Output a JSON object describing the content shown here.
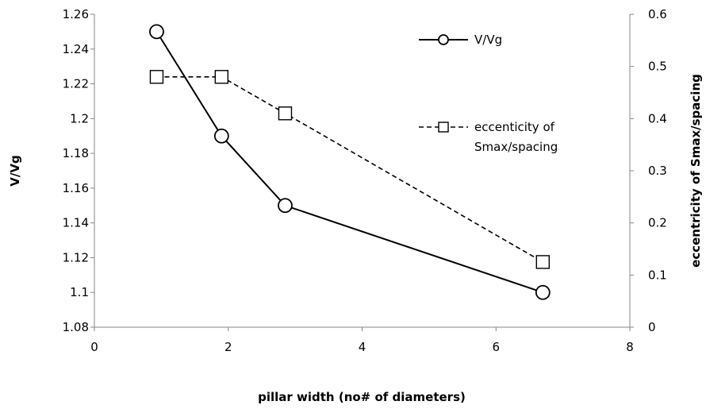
{
  "chart_data": {
    "type": "line",
    "title": "",
    "xlabel": "pillar width (no# of diameters)",
    "ylabel": "V/Vg",
    "y2label": "eccentricity of Smax/spacing",
    "xlim": [
      0,
      8
    ],
    "ylim": [
      1.08,
      1.26
    ],
    "y2lim": [
      0,
      0.6
    ],
    "x_ticks": [
      "0",
      "2",
      "4",
      "6",
      "8"
    ],
    "y_ticks": [
      "1.08",
      "1.1",
      "1.12",
      "1.14",
      "1.16",
      "1.18",
      "1.2",
      "1.22",
      "1.24",
      "1.26"
    ],
    "y2_ticks": [
      "0",
      "0.1",
      "0.2",
      "0.3",
      "0.4",
      "0.5",
      "0.6"
    ],
    "grid": false,
    "legend_position": "top-right",
    "series": [
      {
        "name": "V/Vg",
        "axis": "left",
        "style": "solid",
        "marker": "circle",
        "x": [
          0.93,
          1.9,
          2.85,
          6.7
        ],
        "y": [
          1.25,
          1.19,
          1.15,
          1.1
        ]
      },
      {
        "name": "eccenticity of Smax/spacing",
        "legend_lines": [
          "eccenticity of",
          "Smax/spacing"
        ],
        "axis": "right",
        "style": "dashed",
        "marker": "square",
        "x": [
          0.93,
          1.9,
          2.85,
          6.7
        ],
        "y": [
          0.48,
          0.48,
          0.41,
          0.125
        ]
      }
    ]
  }
}
